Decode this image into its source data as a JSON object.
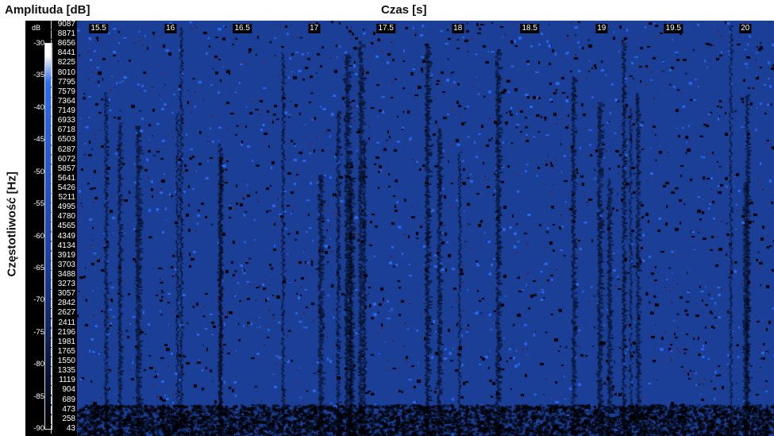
{
  "header": {
    "amplitude_title": "Amplituda [dB]",
    "time_title": "Czas [s]",
    "freq_title": "Częstotliwość [Hz]",
    "db_unit": "dB"
  },
  "colors": {
    "spectrogram_base": "#1b3f97",
    "spectrogram_high": "#2c66e8",
    "spectrogram_low": "#000000",
    "panel": "#000000"
  },
  "chart_data": {
    "type": "heatmap",
    "title": "",
    "xlabel": "Czas [s]",
    "ylabel": "Częstotliwość [Hz]",
    "colorbar_label": "Amplituda [dB]",
    "x_ticks": [
      "15.5",
      "16",
      "16.5",
      "17",
      "17.5",
      "18",
      "18.5",
      "19",
      "19.5",
      "20"
    ],
    "x_tick_values": [
      15.5,
      16,
      16.5,
      17,
      17.5,
      18,
      18.5,
      19,
      19.5,
      20
    ],
    "xlim": [
      15.35,
      20.2
    ],
    "colorbar_ticks": [
      "-30",
      "-35",
      "-40",
      "-45",
      "-50",
      "-55",
      "-60",
      "-65",
      "-70",
      "-75",
      "-80",
      "-85",
      "-90"
    ],
    "colorbar_values": [
      -30,
      -35,
      -40,
      -45,
      -50,
      -55,
      -60,
      -65,
      -70,
      -75,
      -80,
      -85,
      -90
    ],
    "y_ticks": [
      "9087",
      "8871",
      "8656",
      "8441",
      "8225",
      "8010",
      "7795",
      "7579",
      "7364",
      "7149",
      "6933",
      "6718",
      "6503",
      "6287",
      "6072",
      "5857",
      "5641",
      "5426",
      "5211",
      "4995",
      "4780",
      "4565",
      "4349",
      "4134",
      "3919",
      "3703",
      "3488",
      "3273",
      "3057",
      "2842",
      "2627",
      "2411",
      "2196",
      "1981",
      "1765",
      "1550",
      "1335",
      "1119",
      "904",
      "689",
      "473",
      "258",
      "43"
    ],
    "ylim": [
      0,
      9200
    ],
    "grid": false,
    "legend": "left colorbar"
  }
}
